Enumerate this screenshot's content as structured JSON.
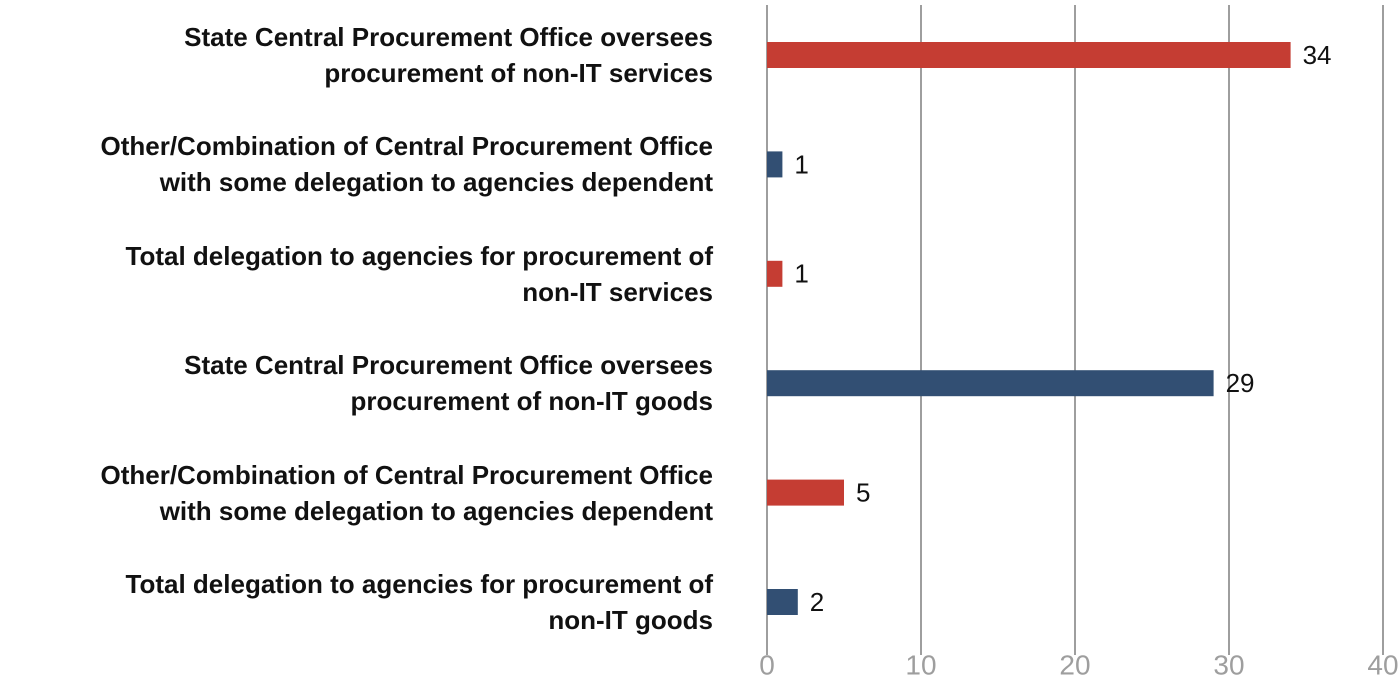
{
  "chart_data": {
    "type": "bar",
    "orientation": "horizontal",
    "categories": [
      "State Central Procurement Office oversees\nprocurement of non-IT services",
      "Other/Combination of Central Procurement Office\nwith some delegation to agencies dependent",
      "Total delegation to agencies for procurement of\nnon-IT services",
      "State Central Procurement Office oversees\nprocurement of non-IT goods",
      "Other/Combination of Central Procurement Office\nwith some delegation to agencies dependent",
      "Total delegation to agencies for procurement of\nnon-IT goods"
    ],
    "values": [
      34,
      1,
      1,
      29,
      5,
      2
    ],
    "colors": [
      "#c53d33",
      "#324f73",
      "#c53d33",
      "#324f73",
      "#c53d33",
      "#324f73"
    ],
    "xlim": [
      0,
      40
    ],
    "xticks": [
      0,
      10,
      20,
      30,
      40
    ],
    "grid": true
  }
}
